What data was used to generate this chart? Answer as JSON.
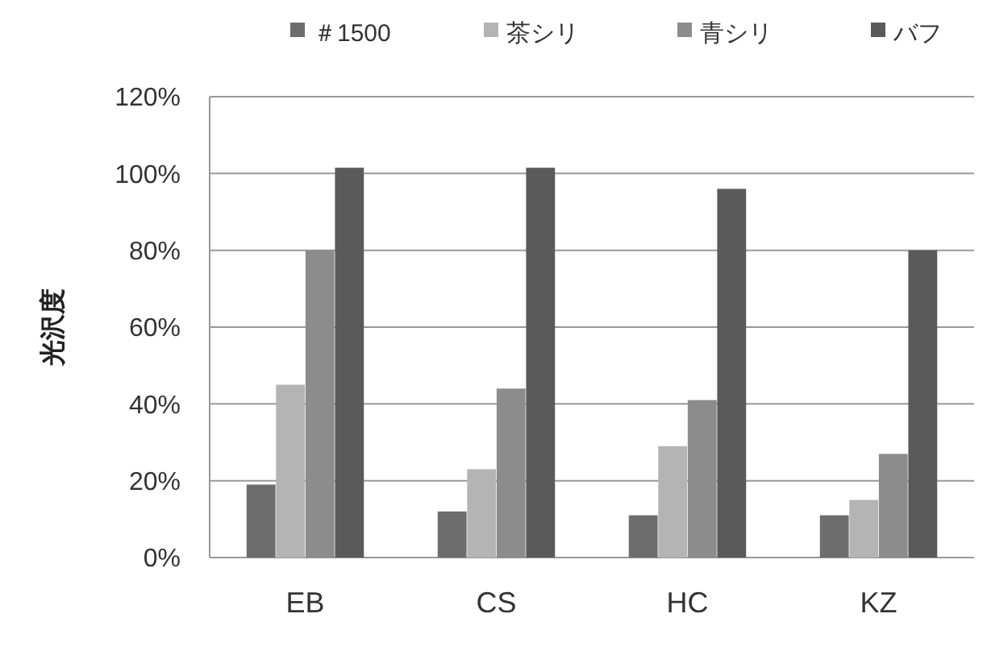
{
  "chart_data": {
    "type": "bar",
    "ylabel": "光沢度",
    "categories": [
      "EB",
      "CS",
      "HC",
      "KZ"
    ],
    "series": [
      {
        "name": "＃1500",
        "color": "#6d6d6d",
        "values": [
          19,
          12,
          11,
          11
        ]
      },
      {
        "name": "茶シリ",
        "color": "#b4b4b4",
        "values": [
          45,
          23,
          29,
          15
        ]
      },
      {
        "name": "青シリ",
        "color": "#8c8c8c",
        "values": [
          80,
          44,
          41,
          27
        ]
      },
      {
        "name": "バフ",
        "color": "#5a5a5a",
        "values": [
          101.5,
          101.5,
          96,
          80
        ]
      }
    ],
    "ylim": [
      0,
      120
    ],
    "yticks": [
      {
        "value": 0,
        "label": "0%"
      },
      {
        "value": 20,
        "label": "20%"
      },
      {
        "value": 40,
        "label": "40%"
      },
      {
        "value": 60,
        "label": "60%"
      },
      {
        "value": 80,
        "label": "80%"
      },
      {
        "value": 100,
        "label": "100%"
      },
      {
        "value": 120,
        "label": "120%"
      }
    ],
    "grid": "y",
    "legend": "top"
  }
}
